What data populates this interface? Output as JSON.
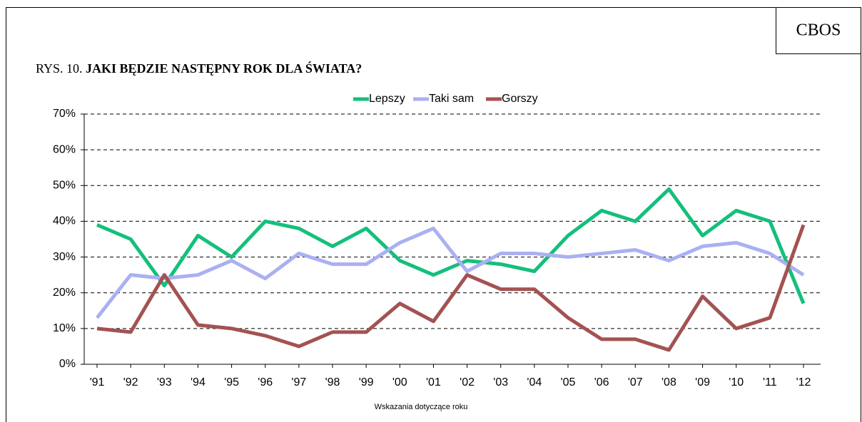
{
  "chart_data": {
    "type": "line",
    "source": "CBOS",
    "figure_label": "RYS. 10.",
    "title": "JAKI BĘDZIE NASTĘPNY ROK DLA ŚWIATA?",
    "xlabel": "Wskazania dotyczące roku",
    "categories": [
      "'91",
      "'92",
      "'93",
      "'94",
      "'95",
      "'96",
      "'97",
      "'98",
      "'99",
      "'00",
      "'01",
      "'02",
      "'03",
      "'04",
      "'05",
      "'06",
      "'07",
      "'08",
      "'09",
      "'10",
      "'11",
      "'12"
    ],
    "series": [
      {
        "name": "Lepszy",
        "color": "#14bf7c",
        "values": [
          39,
          35,
          22,
          36,
          30,
          40,
          38,
          33,
          38,
          29,
          25,
          29,
          28,
          26,
          36,
          43,
          40,
          49,
          36,
          43,
          40,
          17
        ]
      },
      {
        "name": "Taki sam",
        "color": "#aab0f2",
        "values": [
          13,
          25,
          24,
          25,
          29,
          24,
          31,
          28,
          28,
          34,
          38,
          26,
          31,
          31,
          30,
          31,
          32,
          29,
          33,
          34,
          31,
          25
        ]
      },
      {
        "name": "Gorszy",
        "color": "#a35252",
        "values": [
          10,
          9,
          25,
          11,
          10,
          8,
          5,
          9,
          9,
          17,
          12,
          25,
          21,
          21,
          13,
          7,
          7,
          4,
          19,
          10,
          13,
          39
        ]
      }
    ],
    "ylim": [
      0,
      70
    ],
    "yticks": [
      {
        "value": 0,
        "label": "0%"
      },
      {
        "value": 10,
        "label": "10%"
      },
      {
        "value": 20,
        "label": "20%"
      },
      {
        "value": 30,
        "label": "30%"
      },
      {
        "value": 40,
        "label": "40%"
      },
      {
        "value": 50,
        "label": "50%"
      },
      {
        "value": 60,
        "label": "60%"
      },
      {
        "value": 70,
        "label": "70%"
      }
    ],
    "grid": true,
    "legend": "top"
  }
}
